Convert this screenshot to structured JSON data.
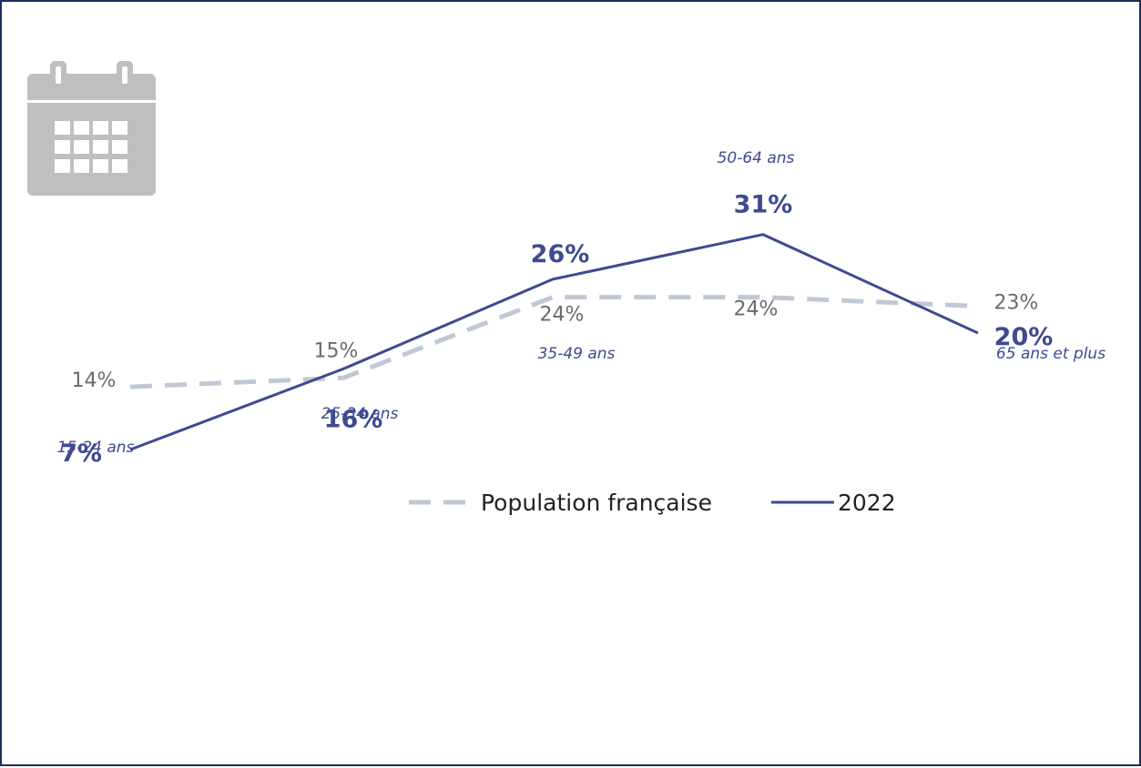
{
  "colors": {
    "series_2022": "#3f4a91",
    "series_population": "#c0c8d6",
    "population_label": "#6b6b6b",
    "icon": "#bfbfbf",
    "border": "#1f2d5a"
  },
  "icon": {
    "name": "calendar-icon"
  },
  "chart_data": {
    "type": "line",
    "categories": [
      "15-24 ans",
      "25-34 ans",
      "35-49 ans",
      "50-64 ans",
      "65 ans et plus"
    ],
    "series": [
      {
        "name": "Population française",
        "values": [
          14,
          15,
          24,
          24,
          23
        ],
        "labels": [
          "14%",
          "15%",
          "24%",
          "24%",
          "23%"
        ],
        "style": "dashed"
      },
      {
        "name": "2022",
        "values": [
          7,
          16,
          26,
          31,
          20
        ],
        "labels": [
          "7%",
          "16%",
          "26%",
          "31%",
          "20%"
        ],
        "style": "solid"
      }
    ],
    "legend": {
      "position": "bottom-center",
      "entries": [
        "Population française",
        "2022"
      ]
    },
    "grid": false,
    "axes_visible": false,
    "ylim": [
      0,
      35
    ]
  }
}
